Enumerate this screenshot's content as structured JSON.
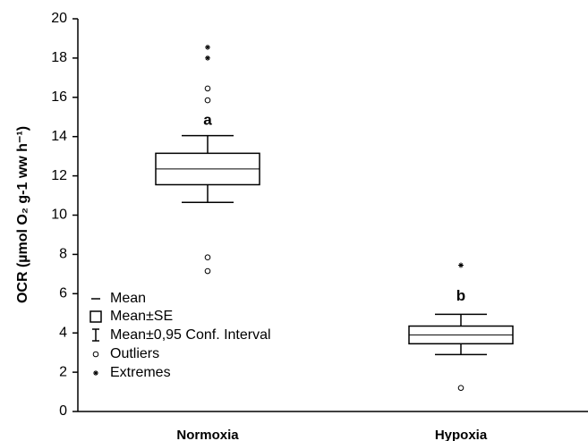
{
  "chart_data": {
    "type": "box",
    "ylabel": "OCR (µmol O₂ g-1 ww h⁻¹)",
    "categories": [
      "Normoxia",
      "Hypoxia"
    ],
    "boxes": [
      {
        "mean": 12.35,
        "se_low": 11.55,
        "se_high": 13.15,
        "ci_low": 10.65,
        "ci_high": 14.05,
        "outliers": [
          16.45,
          15.85,
          7.85,
          7.15
        ],
        "extremes": [
          18.55,
          18.0
        ],
        "annotation": "a",
        "annotation_at": 14.8
      },
      {
        "mean": 3.9,
        "se_low": 3.45,
        "se_high": 4.35,
        "ci_low": 2.9,
        "ci_high": 4.95,
        "outliers": [
          1.2
        ],
        "extremes": [
          7.45
        ],
        "annotation": "b",
        "annotation_at": 5.85
      }
    ],
    "legend": [
      "Mean",
      "Mean±SE",
      "Mean±0,95 Conf. Interval",
      "Outliers",
      "Extremes"
    ],
    "color": "#000000",
    "ylim": [
      0,
      20
    ],
    "yticks": [
      0,
      2,
      4,
      6,
      8,
      10,
      12,
      14,
      16,
      18,
      20
    ]
  }
}
